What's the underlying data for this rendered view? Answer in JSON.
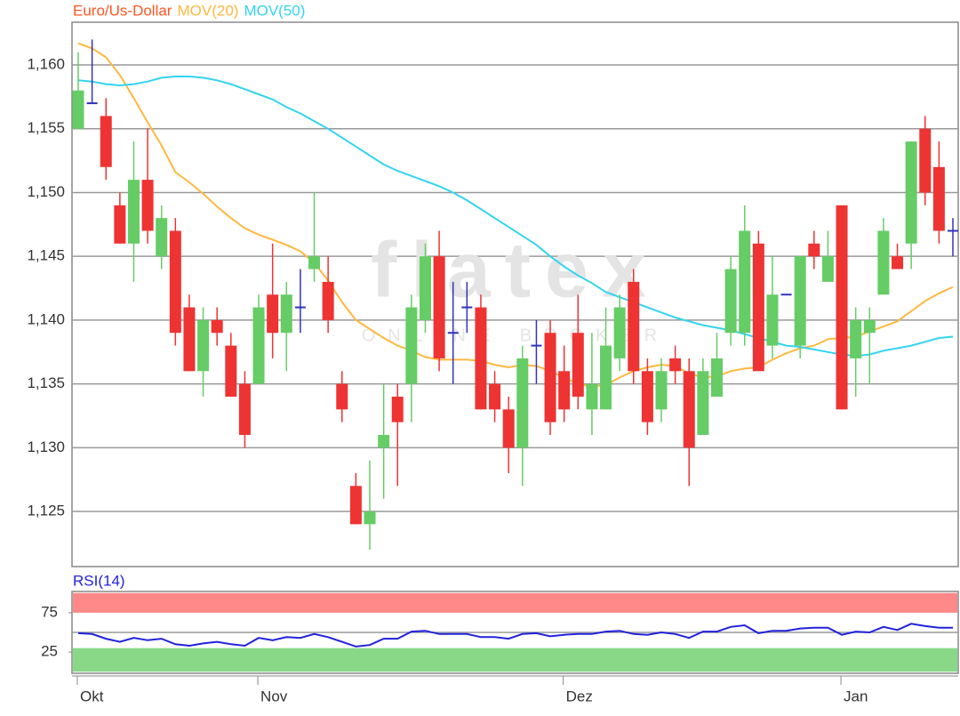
{
  "chart_data": [
    {
      "type": "candlestick",
      "ylim": [
        1.12068,
        1.16335
      ],
      "yticks": [
        {
          "value": 1.125,
          "label": "1,125"
        },
        {
          "value": 1.13,
          "label": "1,130"
        },
        {
          "value": 1.135,
          "label": "1,135"
        },
        {
          "value": 1.14,
          "label": "1,140"
        },
        {
          "value": 1.145,
          "label": "1,145"
        },
        {
          "value": 1.15,
          "label": "1,150"
        },
        {
          "value": 1.155,
          "label": "1,155"
        },
        {
          "value": 1.16,
          "label": "1,160"
        }
      ],
      "grid": true,
      "up_color": "#66cc66",
      "down_color": "#ee3333",
      "flat_color": "#3333bb",
      "watermark": "flatex",
      "watermark_subtitle": "ONLINE BROKER",
      "series": [
        {
          "name": "Euro/Us-Dollar",
          "color": "#ff5522",
          "open": [
            1.155,
            1.157,
            1.156,
            1.149,
            1.146,
            1.151,
            1.145,
            1.147,
            1.141,
            1.136,
            1.14,
            1.138,
            1.135,
            1.135,
            1.142,
            1.139,
            1.141,
            1.144,
            1.143,
            1.135,
            1.127,
            1.124,
            1.13,
            1.134,
            1.135,
            1.14,
            1.145,
            1.139,
            1.141,
            1.141,
            1.135,
            1.133,
            1.13,
            1.138,
            1.139,
            1.136,
            1.139,
            1.133,
            1.133,
            1.137,
            1.143,
            1.136,
            1.133,
            1.137,
            1.136,
            1.131,
            1.134,
            1.139,
            1.139,
            1.146,
            1.138,
            1.142,
            1.138,
            1.146,
            1.143,
            1.149,
            1.137,
            1.139,
            1.142,
            1.145,
            1.146,
            1.155,
            1.152,
            1.147
          ],
          "high": [
            1.161,
            1.162,
            1.1574,
            1.15,
            1.154,
            1.155,
            1.149,
            1.148,
            1.142,
            1.141,
            1.141,
            1.139,
            1.136,
            1.142,
            1.146,
            1.143,
            1.144,
            1.15,
            1.145,
            1.136,
            1.128,
            1.129,
            1.135,
            1.135,
            1.142,
            1.146,
            1.147,
            1.143,
            1.143,
            1.142,
            1.136,
            1.134,
            1.138,
            1.14,
            1.14,
            1.138,
            1.142,
            1.139,
            1.141,
            1.142,
            1.144,
            1.137,
            1.137,
            1.138,
            1.137,
            1.137,
            1.139,
            1.145,
            1.149,
            1.147,
            1.145,
            1.142,
            1.145,
            1.147,
            1.147,
            1.149,
            1.141,
            1.141,
            1.148,
            1.146,
            1.154,
            1.156,
            1.154,
            1.148
          ],
          "low": [
            1.155,
            1.157,
            1.151,
            1.146,
            1.143,
            1.146,
            1.144,
            1.138,
            1.136,
            1.134,
            1.138,
            1.134,
            1.13,
            1.135,
            1.137,
            1.136,
            1.139,
            1.143,
            1.139,
            1.132,
            1.124,
            1.122,
            1.126,
            1.127,
            1.132,
            1.139,
            1.136,
            1.135,
            1.139,
            1.133,
            1.132,
            1.128,
            1.127,
            1.135,
            1.131,
            1.132,
            1.133,
            1.131,
            1.133,
            1.136,
            1.135,
            1.131,
            1.132,
            1.135,
            1.127,
            1.131,
            1.134,
            1.138,
            1.138,
            1.136,
            1.137,
            1.142,
            1.137,
            1.144,
            1.143,
            1.133,
            1.134,
            1.135,
            1.142,
            1.144,
            1.144,
            1.149,
            1.146,
            1.145
          ],
          "close": [
            1.158,
            1.157,
            1.152,
            1.146,
            1.151,
            1.147,
            1.148,
            1.139,
            1.136,
            1.14,
            1.139,
            1.134,
            1.131,
            1.141,
            1.139,
            1.142,
            1.141,
            1.145,
            1.14,
            1.133,
            1.124,
            1.125,
            1.131,
            1.132,
            1.141,
            1.145,
            1.137,
            1.139,
            1.141,
            1.133,
            1.133,
            1.13,
            1.137,
            1.138,
            1.132,
            1.133,
            1.134,
            1.135,
            1.138,
            1.141,
            1.136,
            1.132,
            1.136,
            1.136,
            1.13,
            1.136,
            1.137,
            1.144,
            1.147,
            1.136,
            1.142,
            1.142,
            1.145,
            1.145,
            1.145,
            1.133,
            1.14,
            1.14,
            1.147,
            1.144,
            1.154,
            1.15,
            1.147,
            1.147
          ]
        },
        {
          "name": "MOV(20)",
          "color": "#ffb840",
          "values": [
            1.1617,
            1.1613,
            1.1606,
            1.1592,
            1.1574,
            1.1555,
            1.1537,
            1.1516,
            1.1508,
            1.1499,
            1.1489,
            1.148,
            1.1472,
            1.1467,
            1.1463,
            1.1459,
            1.1454,
            1.1445,
            1.1431,
            1.1414,
            1.14,
            1.1393,
            1.1386,
            1.138,
            1.1376,
            1.1371,
            1.1369,
            1.1369,
            1.1369,
            1.1368,
            1.1365,
            1.1363,
            1.1365,
            1.1364,
            1.136,
            1.1355,
            1.135,
            1.1348,
            1.1349,
            1.1355,
            1.136,
            1.1363,
            1.1365,
            1.1364,
            1.1358,
            1.1355,
            1.1356,
            1.136,
            1.1362,
            1.1363,
            1.1369,
            1.1374,
            1.1378,
            1.138,
            1.1385,
            1.1386,
            1.1387,
            1.1391,
            1.1395,
            1.1399,
            1.1407,
            1.1415,
            1.1421,
            1.1426
          ]
        },
        {
          "name": "MOV(50)",
          "color": "#33d4f0",
          "values": [
            1.1588,
            1.1587,
            1.1585,
            1.1584,
            1.1585,
            1.1587,
            1.159,
            1.1591,
            1.1591,
            1.159,
            1.1588,
            1.1585,
            1.1581,
            1.1577,
            1.1573,
            1.1567,
            1.1562,
            1.1556,
            1.155,
            1.1543,
            1.1536,
            1.1529,
            1.1522,
            1.1517,
            1.1513,
            1.1509,
            1.1505,
            1.15,
            1.1494,
            1.1487,
            1.148,
            1.1473,
            1.1466,
            1.1459,
            1.145,
            1.1442,
            1.1435,
            1.1429,
            1.1422,
            1.1418,
            1.1414,
            1.141,
            1.1406,
            1.1402,
            1.1399,
            1.1396,
            1.1394,
            1.1392,
            1.1389,
            1.1386,
            1.1383,
            1.138,
            1.1379,
            1.1377,
            1.1375,
            1.1373,
            1.1372,
            1.1373,
            1.1376,
            1.1378,
            1.138,
            1.1383,
            1.1386,
            1.1387
          ]
        }
      ]
    },
    {
      "type": "line",
      "categories": [
        "Okt",
        null,
        null,
        null,
        null,
        null,
        null,
        null,
        null,
        null,
        null,
        null,
        null,
        "Nov",
        null,
        null,
        null,
        null,
        null,
        null,
        null,
        null,
        null,
        null,
        null,
        null,
        null,
        null,
        null,
        null,
        null,
        null,
        null,
        null,
        null,
        "Dez",
        null,
        null,
        null,
        null,
        null,
        null,
        null,
        null,
        null,
        null,
        null,
        null,
        null,
        null,
        null,
        null,
        null,
        null,
        null,
        "Jan",
        null,
        null,
        null,
        null,
        null,
        null,
        null,
        null
      ],
      "ylim": [
        -2,
        102
      ],
      "yticks": [
        75,
        25
      ],
      "reference_line": 50,
      "bands": [
        {
          "range": [
            75,
            100
          ],
          "color": "#ff8888"
        },
        {
          "range": [
            0,
            30
          ],
          "color": "#88d888"
        }
      ],
      "series": [
        {
          "name": "RSI(14)",
          "color": "#2222dd",
          "values": [
            49,
            48,
            42,
            38,
            43,
            40,
            42,
            35,
            33,
            36,
            38,
            35,
            33,
            43,
            40,
            44,
            43,
            48,
            44,
            38,
            32,
            34,
            42,
            42,
            51,
            52,
            48,
            48,
            48,
            44,
            44,
            42,
            48,
            49,
            45,
            47,
            48,
            48,
            51,
            52,
            48,
            47,
            50,
            48,
            43,
            51,
            51,
            57,
            59,
            49,
            52,
            52,
            55,
            56,
            56,
            47,
            51,
            50,
            57,
            53,
            61,
            58,
            56,
            56
          ]
        }
      ]
    }
  ]
}
